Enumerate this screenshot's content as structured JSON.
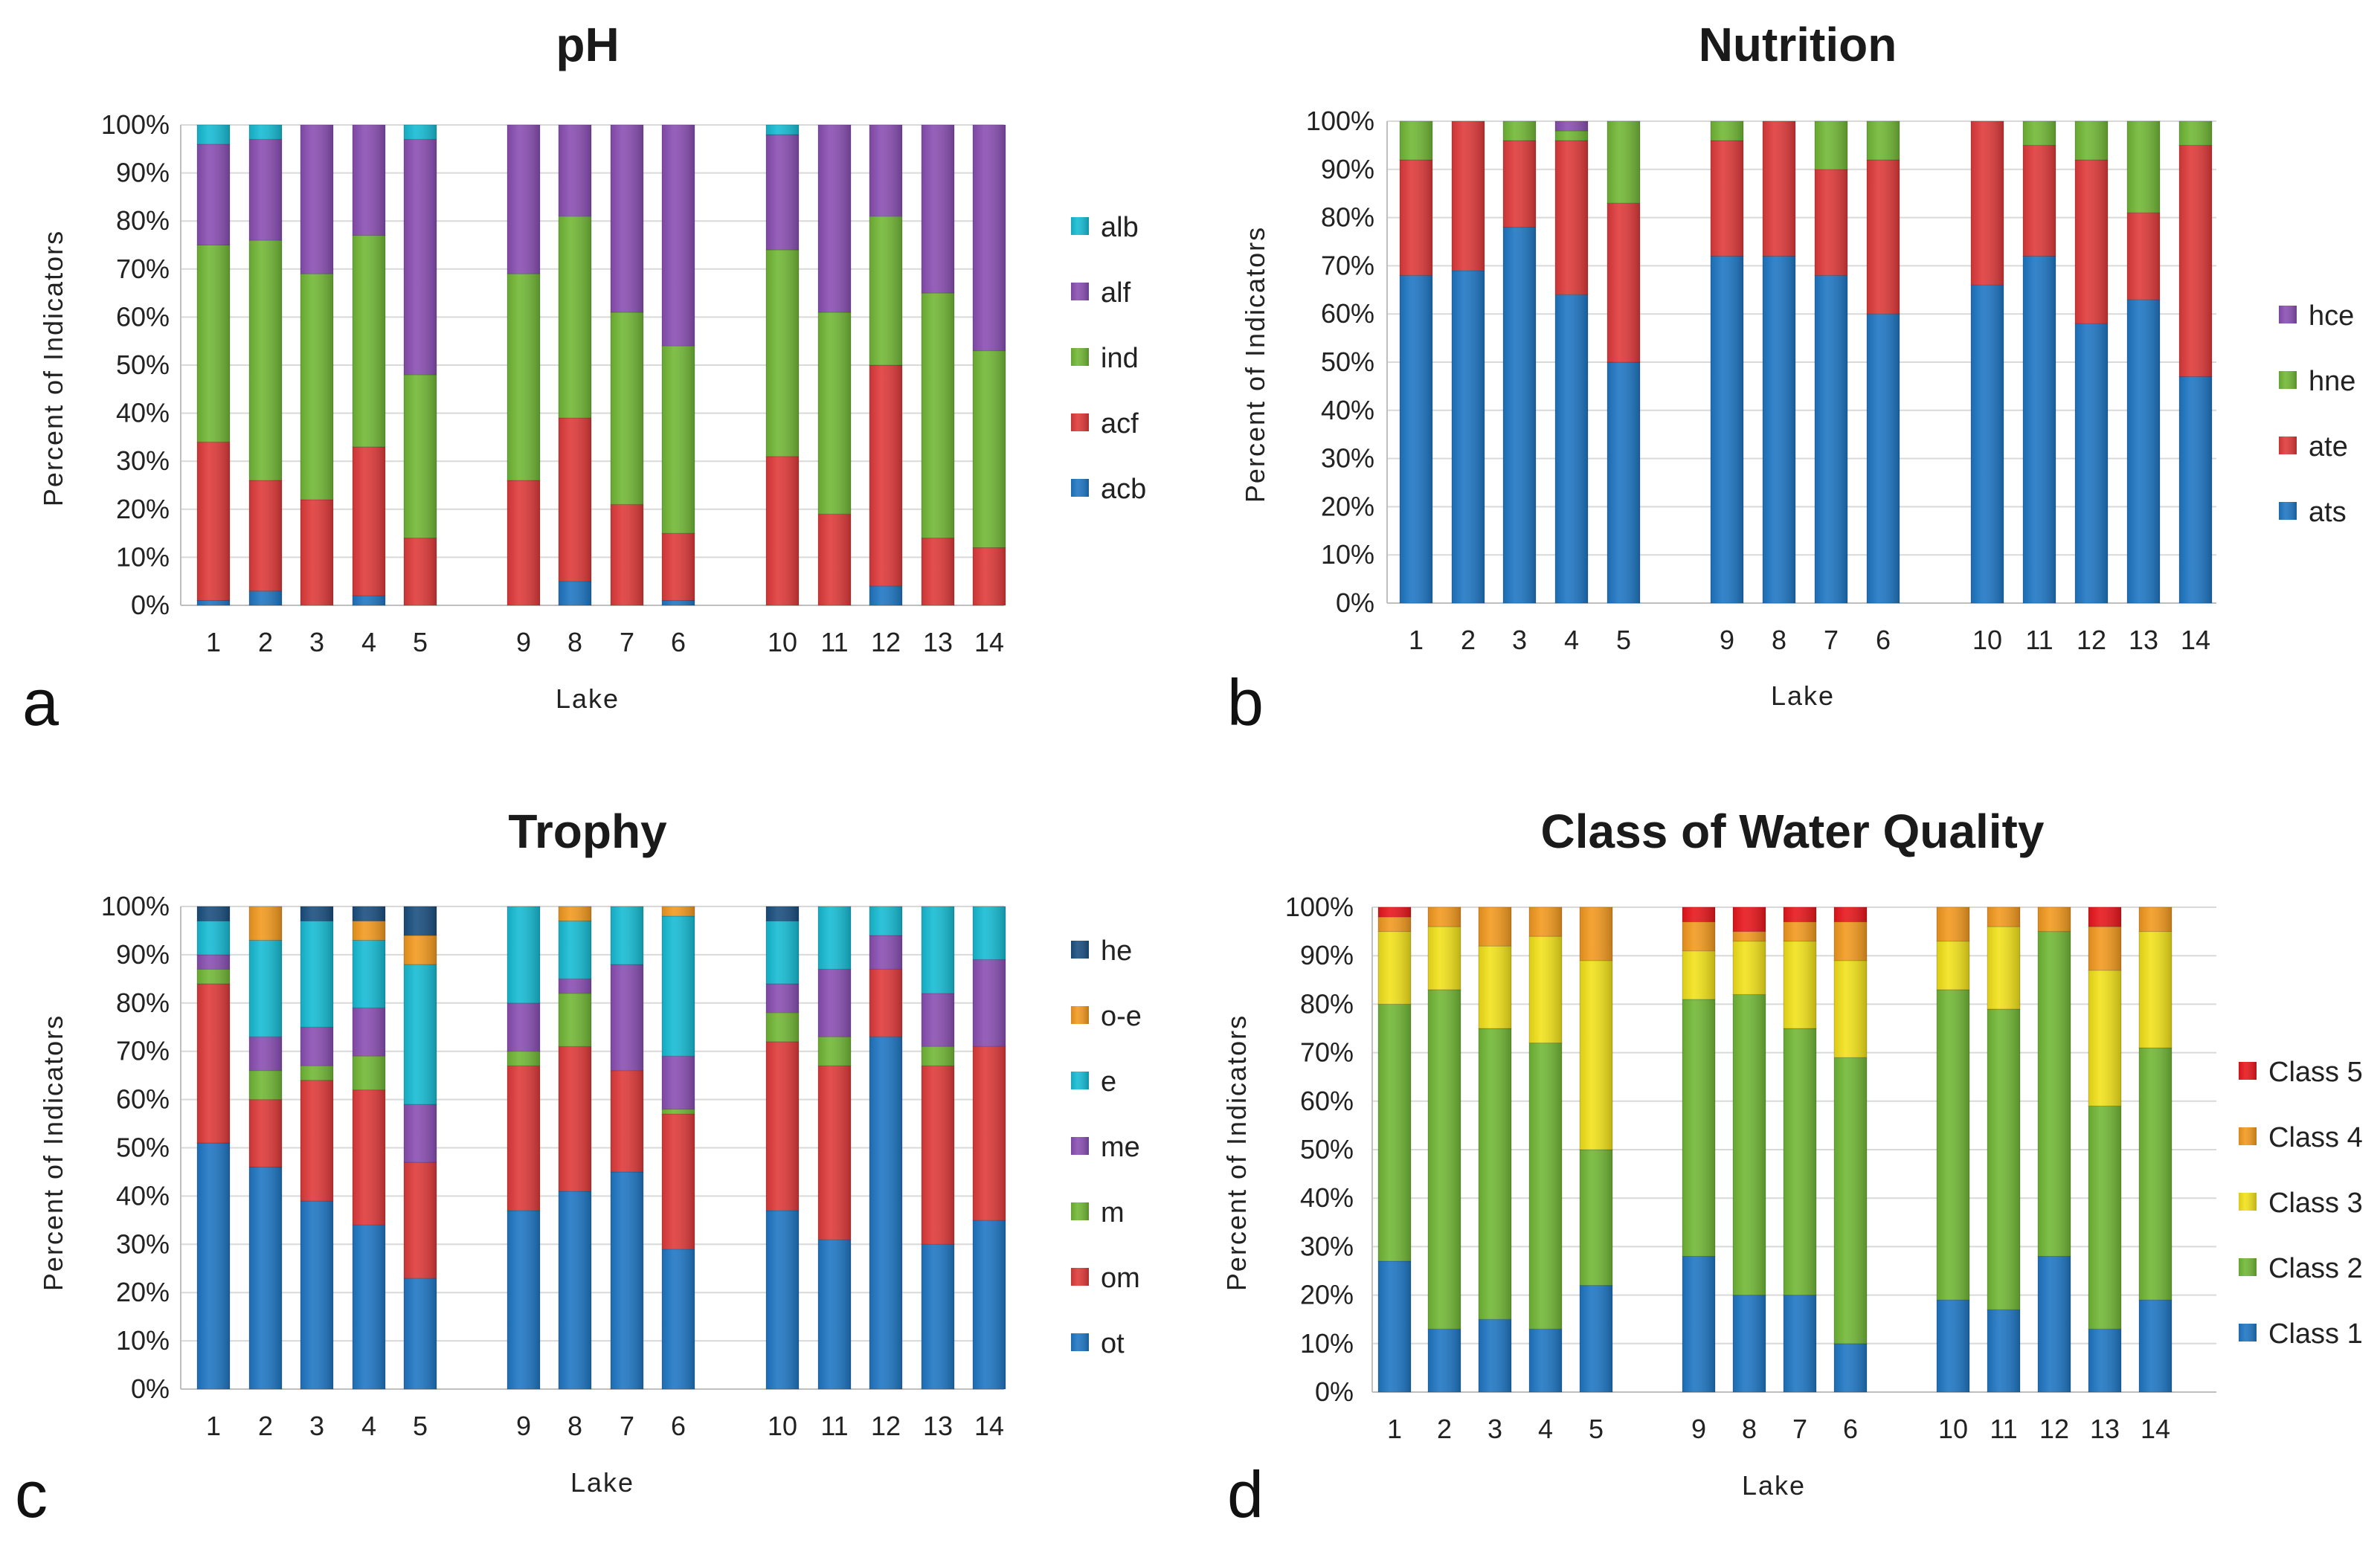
{
  "lake_labels": [
    "1",
    "2",
    "3",
    "4",
    "5",
    "9",
    "8",
    "7",
    "6",
    "10",
    "11",
    "12",
    "13",
    "14"
  ],
  "y_ticks": [
    "0%",
    "10%",
    "20%",
    "30%",
    "40%",
    "50%",
    "60%",
    "70%",
    "80%",
    "90%",
    "100%"
  ],
  "chart_data": [
    {
      "panel": "a",
      "type": "bar",
      "stacked": true,
      "title": "pH",
      "xlabel": "Lake",
      "ylabel": "Percent of Indicators",
      "ylim": [
        0,
        100
      ],
      "categories": [
        "1",
        "2",
        "3",
        "4",
        "5",
        "9",
        "8",
        "7",
        "6",
        "10",
        "11",
        "12",
        "13",
        "14"
      ],
      "legend_order": [
        "alb",
        "alf",
        "ind",
        "acf",
        "acb"
      ],
      "series": [
        {
          "name": "acb",
          "color": "#1f77c4",
          "values": [
            1,
            3,
            0,
            2,
            0,
            0,
            5,
            0,
            1,
            0,
            0,
            4,
            0,
            0
          ]
        },
        {
          "name": "acf",
          "color": "#e03a3a",
          "values": [
            33,
            23,
            22,
            31,
            14,
            26,
            34,
            21,
            14,
            31,
            19,
            46,
            14,
            12
          ]
        },
        {
          "name": "ind",
          "color": "#72b836",
          "values": [
            41,
            50,
            47,
            44,
            34,
            43,
            42,
            40,
            39,
            43,
            42,
            31,
            51,
            41
          ]
        },
        {
          "name": "alf",
          "color": "#8a4fb3",
          "values": [
            21,
            21,
            31,
            23,
            49,
            31,
            19,
            39,
            46,
            24,
            39,
            19,
            35,
            47
          ]
        },
        {
          "name": "alb",
          "color": "#16bcd4",
          "values": [
            4,
            3,
            0,
            0,
            3,
            0,
            0,
            0,
            0,
            2,
            0,
            0,
            0,
            0
          ]
        }
      ]
    },
    {
      "panel": "b",
      "type": "bar",
      "stacked": true,
      "title": "Nutrition",
      "xlabel": "Lake",
      "ylabel": "Percent of Indicators",
      "ylim": [
        0,
        100
      ],
      "categories": [
        "1",
        "2",
        "3",
        "4",
        "5",
        "9",
        "8",
        "7",
        "6",
        "10",
        "11",
        "12",
        "13",
        "14"
      ],
      "legend_order": [
        "hce",
        "hne",
        "ate",
        "ats"
      ],
      "series": [
        {
          "name": "ats",
          "color": "#1f77c4",
          "values": [
            68,
            69,
            78,
            64,
            50,
            72,
            72,
            68,
            60,
            66,
            72,
            58,
            63,
            47
          ]
        },
        {
          "name": "ate",
          "color": "#e03a3a",
          "values": [
            24,
            31,
            18,
            32,
            33,
            24,
            28,
            22,
            32,
            34,
            23,
            34,
            18,
            48
          ]
        },
        {
          "name": "hne",
          "color": "#72b836",
          "values": [
            8,
            0,
            4,
            2,
            17,
            4,
            0,
            10,
            8,
            0,
            5,
            8,
            19,
            5
          ]
        },
        {
          "name": "hce",
          "color": "#8a4fb3",
          "values": [
            0,
            0,
            0,
            2,
            0,
            0,
            0,
            0,
            0,
            0,
            0,
            0,
            0,
            0
          ]
        }
      ]
    },
    {
      "panel": "c",
      "type": "bar",
      "stacked": true,
      "title": "Trophy",
      "xlabel": "Lake",
      "ylabel": "Percent of Indicators",
      "ylim": [
        0,
        100
      ],
      "categories": [
        "1",
        "2",
        "3",
        "4",
        "5",
        "9",
        "8",
        "7",
        "6",
        "10",
        "11",
        "12",
        "13",
        "14"
      ],
      "legend_order": [
        "he",
        "o-e",
        "e",
        "me",
        "m",
        "om",
        "ot"
      ],
      "series": [
        {
          "name": "ot",
          "color": "#1f77c4",
          "values": [
            51,
            46,
            39,
            34,
            23,
            37,
            41,
            45,
            29,
            37,
            31,
            73,
            30,
            35
          ]
        },
        {
          "name": "om",
          "color": "#e03a3a",
          "values": [
            33,
            14,
            25,
            28,
            24,
            30,
            30,
            21,
            28,
            35,
            36,
            14,
            37,
            36
          ]
        },
        {
          "name": "m",
          "color": "#72b836",
          "values": [
            3,
            6,
            3,
            7,
            0,
            3,
            11,
            0,
            1,
            6,
            6,
            0,
            4,
            0
          ]
        },
        {
          "name": "me",
          "color": "#8a4fb3",
          "values": [
            3,
            7,
            8,
            10,
            12,
            10,
            3,
            22,
            11,
            6,
            14,
            7,
            11,
            18
          ]
        },
        {
          "name": "e",
          "color": "#16bcd4",
          "values": [
            7,
            20,
            22,
            14,
            29,
            20,
            12,
            12,
            29,
            13,
            13,
            6,
            18,
            11
          ]
        },
        {
          "name": "o-e",
          "color": "#f39a1f",
          "values": [
            0,
            7,
            0,
            4,
            6,
            0,
            3,
            0,
            2,
            0,
            0,
            0,
            0,
            0
          ]
        },
        {
          "name": "he",
          "color": "#1a4f80",
          "values": [
            3,
            0,
            3,
            3,
            6,
            0,
            0,
            0,
            0,
            3,
            0,
            0,
            0,
            0
          ]
        }
      ]
    },
    {
      "panel": "d",
      "type": "bar",
      "stacked": true,
      "title": "Class of Water Quality",
      "xlabel": "Lake",
      "ylabel": "Percent of Indicators",
      "ylim": [
        0,
        100
      ],
      "categories": [
        "1",
        "2",
        "3",
        "4",
        "5",
        "9",
        "8",
        "7",
        "6",
        "10",
        "11",
        "12",
        "13",
        "14"
      ],
      "legend_order": [
        "Class 5",
        "Class 4",
        "Class 3",
        "Class 2",
        "Class 1"
      ],
      "series": [
        {
          "name": "Class 1",
          "color": "#1f77c4",
          "values": [
            27,
            13,
            15,
            13,
            22,
            28,
            20,
            20,
            10,
            19,
            17,
            28,
            13,
            19
          ]
        },
        {
          "name": "Class 2",
          "color": "#72b836",
          "values": [
            53,
            70,
            60,
            59,
            28,
            53,
            62,
            55,
            59,
            64,
            62,
            67,
            46,
            52
          ]
        },
        {
          "name": "Class 3",
          "color": "#f2e21a",
          "values": [
            15,
            13,
            17,
            22,
            39,
            10,
            11,
            18,
            20,
            10,
            17,
            0,
            28,
            24
          ]
        },
        {
          "name": "Class 4",
          "color": "#f39a1f",
          "values": [
            3,
            4,
            8,
            6,
            11,
            6,
            2,
            4,
            8,
            7,
            4,
            5,
            9,
            5
          ]
        },
        {
          "name": "Class 5",
          "color": "#e8171c",
          "values": [
            2,
            0,
            0,
            0,
            0,
            3,
            5,
            3,
            3,
            0,
            0,
            0,
            4,
            0
          ]
        }
      ]
    }
  ]
}
